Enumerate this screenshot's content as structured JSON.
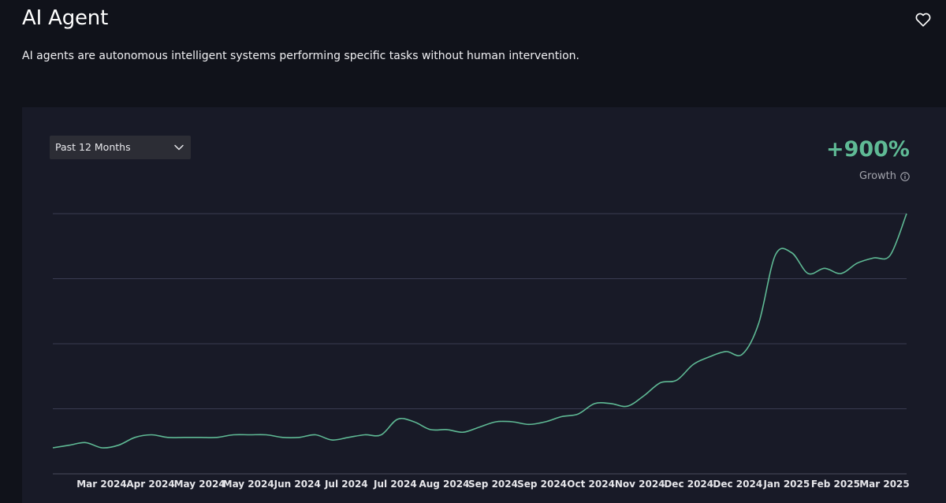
{
  "header": {
    "title": "AI Agent",
    "description": "AI agents are autonomous intelligent systems performing specific tasks without human intervention.",
    "favorite_icon": "heart-icon"
  },
  "controls": {
    "range_selected": "Past 12 Months",
    "range_icon": "chevron-down-icon"
  },
  "growth": {
    "value": "+900%",
    "label": "Growth",
    "info_icon": "info-icon",
    "color": "#5fba95"
  },
  "chart_data": {
    "type": "line",
    "line_color": "#5fba95",
    "grid": true,
    "x_ticks": [
      "Mar 2024",
      "Apr 2024",
      "May 2024",
      "May 2024",
      "Jun 2024",
      "Jul 2024",
      "Jul 2024",
      "Aug 2024",
      "Sep 2024",
      "Sep 2024",
      "Oct 2024",
      "Nov 2024",
      "Dec 2024",
      "Dec 2024",
      "Jan 2025",
      "Feb 2025",
      "Mar 2025"
    ],
    "x": [
      0,
      1,
      2,
      3,
      4,
      5,
      6,
      7,
      8,
      9,
      10,
      11,
      12,
      13,
      14,
      15,
      16,
      17,
      18,
      19,
      20,
      21,
      22,
      23,
      24,
      25,
      26,
      27,
      28,
      29,
      30,
      31,
      32,
      33,
      34,
      35,
      36,
      37,
      38,
      39,
      40,
      41,
      42,
      43,
      44,
      45,
      46,
      47,
      48,
      49,
      50,
      51,
      52
    ],
    "values": [
      10,
      11,
      12,
      10,
      11,
      14,
      15,
      14,
      14,
      14,
      14,
      15,
      15,
      15,
      14,
      14,
      15,
      13,
      14,
      15,
      15,
      21,
      20,
      17,
      17,
      16,
      18,
      20,
      20,
      19,
      20,
      22,
      23,
      27,
      27,
      26,
      30,
      35,
      36,
      42,
      45,
      47,
      46,
      58,
      84,
      85,
      77,
      79,
      77,
      81,
      83,
      84,
      100
    ],
    "ylim": [
      0,
      100
    ]
  }
}
